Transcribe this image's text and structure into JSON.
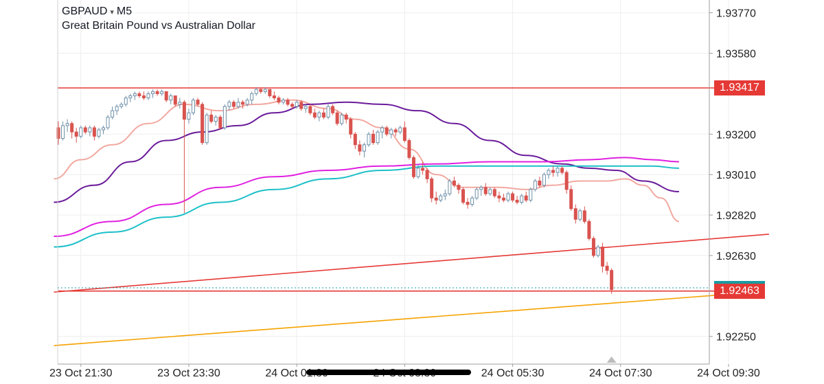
{
  "header": {
    "symbol": "GBPAUD",
    "caret": "▾",
    "timeframe": "M5",
    "description": "Great Britain Pound vs Australian Dollar"
  },
  "colors": {
    "bull": "#6e8fa8",
    "bear": "#d9534f",
    "ema_fast": "#f2a8a0",
    "ma_purple": "#6a1b9a",
    "ma_magenta": "#e020e0",
    "ma_cyan": "#1cc0c8",
    "level_red": "#e53935",
    "trend_orange": "#f5a200",
    "grid": "#eeeeee",
    "axis_text": "#222222"
  },
  "chart_data": {
    "type": "candlestick",
    "instrument": "GBPAUD",
    "timeframe": "M5",
    "ylim": [
      1.9212,
      1.9383
    ],
    "y_ticks": [
      "1.93770",
      "1.93580",
      "1.93417",
      "1.93200",
      "1.93010",
      "1.92820",
      "1.92630",
      "1.92463",
      "1.92250"
    ],
    "x_ticks": [
      "23 Oct 21:30",
      "23 Oct 23:30",
      "24 Oct 01:30",
      "24 Oct 03:30",
      "24 Oct 05:30",
      "24 Oct 07:30",
      "24 Oct 09:30"
    ],
    "x_ticks_index": [
      5,
      29,
      53,
      77,
      101,
      125,
      149
    ],
    "current_price": "1.92463",
    "levels": {
      "resistance": 1.93417,
      "support": 1.92463,
      "current_dashed": 1.92478
    },
    "trendlines": [
      {
        "name": "red-channel",
        "from": [
          -1,
          1.92458
        ],
        "to": [
          158,
          1.9273
        ]
      },
      {
        "name": "orange-channel",
        "from": [
          -1,
          1.92207
        ],
        "to": [
          151,
          1.92451
        ]
      }
    ],
    "candles": [
      [
        1.9323,
        1.9326,
        1.9315,
        1.9318
      ],
      [
        1.9318,
        1.9326,
        1.9317,
        1.9324
      ],
      [
        1.9324,
        1.9327,
        1.9321,
        1.9325
      ],
      [
        1.9325,
        1.9326,
        1.9318,
        1.9321
      ],
      [
        1.9321,
        1.9323,
        1.9316,
        1.9319
      ],
      [
        1.9319,
        1.9324,
        1.9318,
        1.9323
      ],
      [
        1.9323,
        1.9324,
        1.932,
        1.9321
      ],
      [
        1.9321,
        1.9324,
        1.9319,
        1.9323
      ],
      [
        1.9323,
        1.9324,
        1.9317,
        1.9319
      ],
      [
        1.9319,
        1.9323,
        1.9318,
        1.9322
      ],
      [
        1.9322,
        1.9324,
        1.932,
        1.9323
      ],
      [
        1.9323,
        1.9329,
        1.9322,
        1.9328
      ],
      [
        1.9328,
        1.9333,
        1.9327,
        1.9331
      ],
      [
        1.9331,
        1.9334,
        1.9329,
        1.9333
      ],
      [
        1.9333,
        1.9335,
        1.9332,
        1.9334
      ],
      [
        1.9334,
        1.9338,
        1.9333,
        1.9337
      ],
      [
        1.9337,
        1.9339,
        1.9335,
        1.9338
      ],
      [
        1.9338,
        1.934,
        1.9336,
        1.9339
      ],
      [
        1.9339,
        1.934,
        1.9337,
        1.9338
      ],
      [
        1.9338,
        1.934,
        1.9336,
        1.9337
      ],
      [
        1.9337,
        1.934,
        1.9336,
        1.9339
      ],
      [
        1.9339,
        1.9341,
        1.9337,
        1.934
      ],
      [
        1.934,
        1.9341,
        1.9338,
        1.9339
      ],
      [
        1.9339,
        1.9341,
        1.9338,
        1.934
      ],
      [
        1.934,
        1.934,
        1.9335,
        1.9336
      ],
      [
        1.9336,
        1.9339,
        1.9334,
        1.9338
      ],
      [
        1.9338,
        1.9338,
        1.9333,
        1.9334
      ],
      [
        1.9334,
        1.9337,
        1.9332,
        1.9335
      ],
      [
        1.9335,
        1.9336,
        1.9283,
        1.9327
      ],
      [
        1.9327,
        1.9332,
        1.9325,
        1.933
      ],
      [
        1.933,
        1.9337,
        1.9329,
        1.9336
      ],
      [
        1.9336,
        1.9337,
        1.9333,
        1.9334
      ],
      [
        1.9334,
        1.9335,
        1.9315,
        1.9316
      ],
      [
        1.9316,
        1.933,
        1.9315,
        1.9329
      ],
      [
        1.9329,
        1.9331,
        1.9325,
        1.9326
      ],
      [
        1.9326,
        1.9329,
        1.9324,
        1.9328
      ],
      [
        1.9328,
        1.9329,
        1.9322,
        1.9323
      ],
      [
        1.9323,
        1.9334,
        1.9322,
        1.9333
      ],
      [
        1.9333,
        1.9336,
        1.9331,
        1.9335
      ],
      [
        1.9335,
        1.9336,
        1.9332,
        1.9333
      ],
      [
        1.9333,
        1.9337,
        1.9332,
        1.9335
      ],
      [
        1.9335,
        1.9336,
        1.9332,
        1.9334
      ],
      [
        1.9334,
        1.9337,
        1.9333,
        1.9336
      ],
      [
        1.9336,
        1.934,
        1.9334,
        1.9339
      ],
      [
        1.9339,
        1.9342,
        1.9338,
        1.9341
      ],
      [
        1.9341,
        1.9342,
        1.9339,
        1.934
      ],
      [
        1.934,
        1.9342,
        1.9339,
        1.9341
      ],
      [
        1.9341,
        1.9341,
        1.9337,
        1.9338
      ],
      [
        1.9338,
        1.934,
        1.9336,
        1.9337
      ],
      [
        1.9337,
        1.9338,
        1.9334,
        1.9335
      ],
      [
        1.9335,
        1.9337,
        1.9334,
        1.9336
      ],
      [
        1.9336,
        1.9337,
        1.9333,
        1.9334
      ],
      [
        1.9334,
        1.9335,
        1.9332,
        1.9333
      ],
      [
        1.9333,
        1.9336,
        1.9332,
        1.9335
      ],
      [
        1.9335,
        1.9336,
        1.9331,
        1.9332
      ],
      [
        1.9332,
        1.9334,
        1.933,
        1.9333
      ],
      [
        1.9333,
        1.9334,
        1.9329,
        1.933
      ],
      [
        1.933,
        1.9332,
        1.9327,
        1.9328
      ],
      [
        1.9328,
        1.9331,
        1.9326,
        1.933
      ],
      [
        1.933,
        1.9332,
        1.9327,
        1.9328
      ],
      [
        1.9328,
        1.9334,
        1.9327,
        1.9333
      ],
      [
        1.9333,
        1.9334,
        1.9329,
        1.933
      ],
      [
        1.933,
        1.9331,
        1.9324,
        1.9325
      ],
      [
        1.9325,
        1.933,
        1.9324,
        1.9329
      ],
      [
        1.9329,
        1.933,
        1.9325,
        1.9327
      ],
      [
        1.9327,
        1.9328,
        1.9318,
        1.932
      ],
      [
        1.932,
        1.9321,
        1.9313,
        1.9315
      ],
      [
        1.9315,
        1.9317,
        1.931,
        1.9312
      ],
      [
        1.9312,
        1.9316,
        1.9309,
        1.9315
      ],
      [
        1.9315,
        1.9321,
        1.9314,
        1.932
      ],
      [
        1.932,
        1.9322,
        1.9315,
        1.9316
      ],
      [
        1.9316,
        1.9322,
        1.9315,
        1.9321
      ],
      [
        1.9321,
        1.9324,
        1.9318,
        1.9323
      ],
      [
        1.9323,
        1.9324,
        1.9319,
        1.932
      ],
      [
        1.932,
        1.9323,
        1.9318,
        1.9322
      ],
      [
        1.9322,
        1.9323,
        1.9319,
        1.9321
      ],
      [
        1.9321,
        1.9324,
        1.932,
        1.9323
      ],
      [
        1.9323,
        1.9326,
        1.9316,
        1.9317
      ],
      [
        1.9317,
        1.9318,
        1.9308,
        1.9309
      ],
      [
        1.9309,
        1.931,
        1.9299,
        1.93
      ],
      [
        1.93,
        1.9306,
        1.9299,
        1.9304
      ],
      [
        1.9304,
        1.9307,
        1.9301,
        1.9303
      ],
      [
        1.9303,
        1.9304,
        1.9297,
        1.9299
      ],
      [
        1.9299,
        1.93,
        1.9288,
        1.929
      ],
      [
        1.929,
        1.9293,
        1.9287,
        1.9289
      ],
      [
        1.9289,
        1.9292,
        1.9288,
        1.9291
      ],
      [
        1.9291,
        1.9294,
        1.9289,
        1.9292
      ],
      [
        1.9292,
        1.9299,
        1.9291,
        1.9298
      ],
      [
        1.9298,
        1.93,
        1.9295,
        1.9296
      ],
      [
        1.9296,
        1.9297,
        1.9292,
        1.9294
      ],
      [
        1.9294,
        1.9295,
        1.9287,
        1.9288
      ],
      [
        1.9288,
        1.929,
        1.9285,
        1.9287
      ],
      [
        1.9287,
        1.9291,
        1.9286,
        1.929
      ],
      [
        1.929,
        1.9295,
        1.9289,
        1.9294
      ],
      [
        1.9294,
        1.9296,
        1.9291,
        1.9295
      ],
      [
        1.9295,
        1.9297,
        1.9291,
        1.9292
      ],
      [
        1.9292,
        1.9295,
        1.9291,
        1.9294
      ],
      [
        1.9294,
        1.9295,
        1.929,
        1.9291
      ],
      [
        1.9291,
        1.9293,
        1.9288,
        1.929
      ],
      [
        1.929,
        1.9292,
        1.9288,
        1.9289
      ],
      [
        1.9289,
        1.9293,
        1.9288,
        1.9292
      ],
      [
        1.9292,
        1.9293,
        1.9288,
        1.9289
      ],
      [
        1.9289,
        1.9291,
        1.9287,
        1.9288
      ],
      [
        1.9288,
        1.9292,
        1.9287,
        1.9291
      ],
      [
        1.9291,
        1.9293,
        1.9288,
        1.9289
      ],
      [
        1.9289,
        1.9295,
        1.9288,
        1.9294
      ],
      [
        1.9294,
        1.9299,
        1.9293,
        1.9298
      ],
      [
        1.9298,
        1.93,
        1.9295,
        1.9296
      ],
      [
        1.9296,
        1.9302,
        1.9295,
        1.9301
      ],
      [
        1.9301,
        1.9304,
        1.9299,
        1.9303
      ],
      [
        1.9303,
        1.9305,
        1.93,
        1.9302
      ],
      [
        1.9302,
        1.9305,
        1.93,
        1.9304
      ],
      [
        1.9304,
        1.9305,
        1.9301,
        1.9302
      ],
      [
        1.9302,
        1.9303,
        1.9292,
        1.9294
      ],
      [
        1.9294,
        1.9296,
        1.9284,
        1.9285
      ],
      [
        1.9285,
        1.9287,
        1.9278,
        1.928
      ],
      [
        1.928,
        1.9285,
        1.9279,
        1.9284
      ],
      [
        1.9284,
        1.9286,
        1.9278,
        1.9279
      ],
      [
        1.9279,
        1.928,
        1.927,
        1.9271
      ],
      [
        1.9271,
        1.9272,
        1.9262,
        1.9263
      ],
      [
        1.9263,
        1.9268,
        1.9262,
        1.9267
      ],
      [
        1.9267,
        1.9269,
        1.9255,
        1.9258
      ],
      [
        1.9258,
        1.926,
        1.9254,
        1.9256
      ],
      [
        1.9256,
        1.9257,
        1.9245,
        1.9247
      ]
    ],
    "moving_averages": [
      {
        "name": "MA fast",
        "color_key": "ema_fast"
      },
      {
        "name": "MA purple",
        "color_key": "ma_purple"
      },
      {
        "name": "MA magenta",
        "color_key": "ma_magenta"
      },
      {
        "name": "MA cyan",
        "color_key": "ma_cyan"
      }
    ],
    "ma_paths": {
      "ema_fast": [
        [
          -1,
          1.9299
        ],
        [
          5,
          1.9308
        ],
        [
          12,
          1.9315
        ],
        [
          20,
          1.9325
        ],
        [
          28,
          1.9334
        ],
        [
          36,
          1.9331
        ],
        [
          44,
          1.9334
        ],
        [
          52,
          1.9336
        ],
        [
          60,
          1.9332
        ],
        [
          66,
          1.9327
        ],
        [
          72,
          1.9323
        ],
        [
          78,
          1.9313
        ],
        [
          84,
          1.9301
        ],
        [
          90,
          1.9295
        ],
        [
          98,
          1.9295
        ],
        [
          104,
          1.9294
        ],
        [
          110,
          1.9296
        ],
        [
          116,
          1.9298
        ],
        [
          122,
          1.9298
        ],
        [
          126,
          1.9299
        ],
        [
          130,
          1.9296
        ],
        [
          134,
          1.929
        ],
        [
          138,
          1.9279
        ]
      ],
      "ma_purple": [
        [
          -1,
          1.9288
        ],
        [
          8,
          1.9296
        ],
        [
          16,
          1.9307
        ],
        [
          24,
          1.9317
        ],
        [
          32,
          1.9321
        ],
        [
          40,
          1.9324
        ],
        [
          48,
          1.933
        ],
        [
          56,
          1.9334
        ],
        [
          64,
          1.9335
        ],
        [
          72,
          1.9334
        ],
        [
          80,
          1.9331
        ],
        [
          88,
          1.9325
        ],
        [
          96,
          1.9317
        ],
        [
          104,
          1.931
        ],
        [
          112,
          1.9306
        ],
        [
          118,
          1.9304
        ],
        [
          124,
          1.9303
        ],
        [
          130,
          1.9298
        ],
        [
          138,
          1.9293
        ]
      ],
      "ma_magenta": [
        [
          -1,
          1.9272
        ],
        [
          12,
          1.9279
        ],
        [
          24,
          1.9287
        ],
        [
          36,
          1.9295
        ],
        [
          48,
          1.93
        ],
        [
          60,
          1.9303
        ],
        [
          72,
          1.9305
        ],
        [
          84,
          1.9306
        ],
        [
          96,
          1.9307
        ],
        [
          108,
          1.9307
        ],
        [
          118,
          1.9308
        ],
        [
          126,
          1.9309
        ],
        [
          132,
          1.9308
        ],
        [
          138,
          1.9307
        ]
      ],
      "ma_cyan": [
        [
          -1,
          1.9267
        ],
        [
          12,
          1.9274
        ],
        [
          24,
          1.9281
        ],
        [
          36,
          1.9288
        ],
        [
          48,
          1.9294
        ],
        [
          60,
          1.9299
        ],
        [
          72,
          1.9303
        ],
        [
          84,
          1.9305
        ],
        [
          96,
          1.9305
        ],
        [
          108,
          1.9305
        ],
        [
          118,
          1.9305
        ],
        [
          126,
          1.9305
        ],
        [
          132,
          1.9305
        ],
        [
          138,
          1.9304
        ]
      ]
    }
  }
}
